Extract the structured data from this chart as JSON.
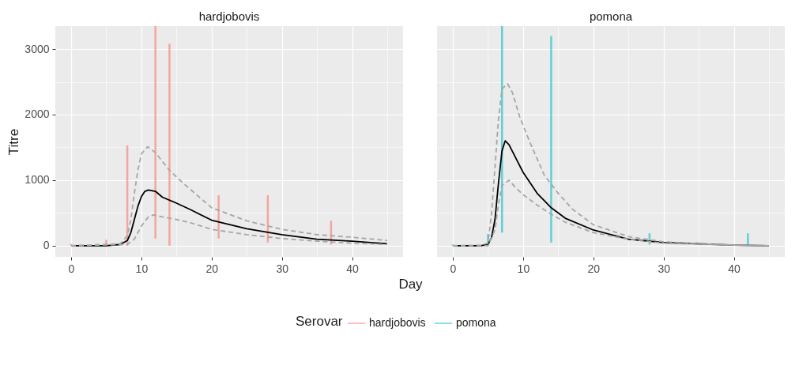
{
  "chart_data": [
    {
      "type": "bar",
      "title": "hardjobovis",
      "xlabel": "Day",
      "ylabel": "Titre",
      "legend_title": "Serovar",
      "legend": "bottom",
      "grid": true,
      "xlim": [
        -2.25,
        47.25
      ],
      "xticks": [
        0,
        10,
        20,
        30,
        40
      ],
      "ylim": [
        -170,
        3350
      ],
      "yticks": [
        0,
        1000,
        2000,
        3000
      ],
      "series": [
        {
          "name": "hardjobovis",
          "color": "#f8766d",
          "x": [
            0,
            5,
            8,
            12,
            14,
            21,
            28,
            37
          ],
          "base": [
            0,
            0,
            0,
            110,
            0,
            110,
            50,
            20
          ],
          "values": [
            30,
            90,
            1530,
            3240,
            3080,
            660,
            720,
            360
          ]
        },
        {
          "type": "line",
          "color": "#000000",
          "line_style": "solid",
          "x": [
            0,
            5,
            7,
            8,
            8.5,
            9,
            9.5,
            10,
            10.5,
            11,
            12,
            13,
            15,
            17,
            20,
            25,
            30,
            35,
            40,
            45
          ],
          "values": [
            0,
            0,
            20,
            80,
            200,
            400,
            600,
            750,
            830,
            850,
            830,
            740,
            650,
            550,
            390,
            260,
            170,
            100,
            70,
            30
          ]
        },
        {
          "type": "line",
          "color": "#a6a6a6",
          "line_style": "dashed",
          "x": [
            0,
            7,
            8,
            8.5,
            9,
            9.5,
            10,
            10.9,
            12,
            14,
            16,
            20,
            25,
            30,
            35,
            40,
            45
          ],
          "values": [
            0,
            30,
            150,
            400,
            800,
            1150,
            1400,
            1510,
            1420,
            1150,
            950,
            580,
            380,
            250,
            170,
            130,
            80
          ]
        },
        {
          "type": "line",
          "color": "#a6a6a6",
          "line_style": "dashed",
          "x": [
            0,
            8,
            9,
            10,
            11,
            11.7,
            13,
            15,
            17,
            20,
            25,
            30,
            35,
            40,
            45
          ],
          "values": [
            0,
            20,
            100,
            300,
            440,
            470,
            440,
            400,
            350,
            250,
            170,
            110,
            70,
            40,
            20
          ]
        }
      ]
    },
    {
      "type": "bar",
      "title": "pomona",
      "grid": true,
      "tick_labels": "x",
      "xlim": [
        -2.25,
        47.25
      ],
      "xticks": [
        0,
        10,
        20,
        30,
        40
      ],
      "ylim": [
        -170,
        3350
      ],
      "yticks": [
        0,
        1000,
        2000,
        3000
      ],
      "series": [
        {
          "name": "pomona",
          "color": "#00bfc4",
          "x": [
            0,
            5,
            7,
            14,
            28,
            42
          ],
          "base": [
            0,
            0,
            200,
            50,
            20,
            0
          ],
          "values": [
            20,
            180,
            3150,
            3150,
            170,
            190
          ]
        },
        {
          "type": "line",
          "color": "#000000",
          "line_style": "solid",
          "x": [
            0,
            4,
            5,
            5.5,
            6,
            6.5,
            7,
            7.45,
            8,
            9,
            10,
            12,
            14,
            16,
            20,
            25,
            30,
            40,
            45
          ],
          "values": [
            0,
            0,
            20,
            120,
            400,
            960,
            1450,
            1600,
            1540,
            1330,
            1120,
            800,
            580,
            420,
            240,
            100,
            50,
            10,
            0
          ]
        },
        {
          "type": "line",
          "color": "#a6a6a6",
          "line_style": "dashed",
          "x": [
            0,
            4,
            5,
            5.5,
            6,
            6.5,
            7,
            7.8,
            8.5,
            9.5,
            11,
            13,
            15,
            17,
            20,
            25,
            30,
            35,
            40,
            45
          ],
          "values": [
            0,
            10,
            40,
            480,
            1200,
            1930,
            2390,
            2470,
            2330,
            1970,
            1570,
            1080,
            800,
            560,
            320,
            140,
            60,
            30,
            10,
            0
          ]
        },
        {
          "type": "line",
          "color": "#a6a6a6",
          "line_style": "dashed",
          "x": [
            0,
            5,
            6,
            6.5,
            7,
            8,
            9,
            10,
            12,
            14,
            16,
            20,
            25,
            30,
            40,
            45
          ],
          "values": [
            0,
            0,
            240,
            640,
            920,
            1000,
            880,
            780,
            620,
            480,
            360,
            200,
            100,
            40,
            10,
            0
          ]
        }
      ]
    }
  ]
}
